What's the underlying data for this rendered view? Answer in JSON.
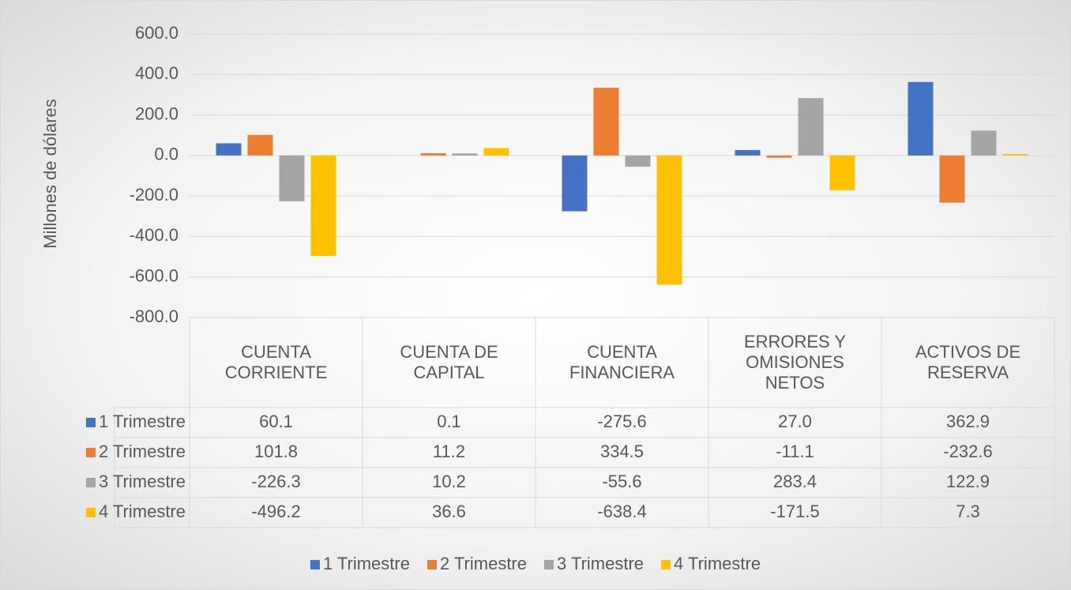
{
  "chart_data": {
    "type": "bar",
    "y_label": "Millones de dólares",
    "categories": [
      "CUENTA CORRIENTE",
      "CUENTA DE CAPITAL",
      "CUENTA FINANCIERA",
      "ERRORES Y OMISIONES NETOS",
      "ACTIVOS DE RESERVA"
    ],
    "series": [
      {
        "name": "1 Trimestre",
        "color": "#4472c4",
        "values": [
          60.1,
          0.1,
          -275.6,
          27.0,
          362.9
        ],
        "value_labels": [
          "60.1",
          "0.1",
          "-275.6",
          "27.0",
          "362.9"
        ]
      },
      {
        "name": "2 Trimestre",
        "color": "#ed7d31",
        "values": [
          101.8,
          11.2,
          334.5,
          -11.1,
          -232.6
        ],
        "value_labels": [
          "101.8",
          "11.2",
          "334.5",
          "-11.1",
          "-232.6"
        ]
      },
      {
        "name": "3 Trimestre",
        "color": "#a5a5a5",
        "values": [
          -226.3,
          10.2,
          -55.6,
          283.4,
          122.9
        ],
        "value_labels": [
          "-226.3",
          "10.2",
          "-55.6",
          "283.4",
          "122.9"
        ]
      },
      {
        "name": "4 Trimestre",
        "color": "#ffc000",
        "values": [
          -496.2,
          36.6,
          -638.4,
          -171.5,
          7.3
        ],
        "value_labels": [
          "-496.2",
          "36.6",
          "-638.4",
          "-171.5",
          "7.3"
        ]
      }
    ],
    "ylim": [
      -800,
      600
    ],
    "yticks": [
      {
        "value": -800,
        "label": "-800.0"
      },
      {
        "value": -600,
        "label": "-600.0"
      },
      {
        "value": -400,
        "label": "-400.0"
      },
      {
        "value": -200,
        "label": "-200.0"
      },
      {
        "value": 0,
        "label": "0.0"
      },
      {
        "value": 200,
        "label": "200.0"
      },
      {
        "value": 400,
        "label": "400.0"
      },
      {
        "value": 600,
        "label": "600.0"
      }
    ],
    "grid": true,
    "legend": "bottom"
  }
}
